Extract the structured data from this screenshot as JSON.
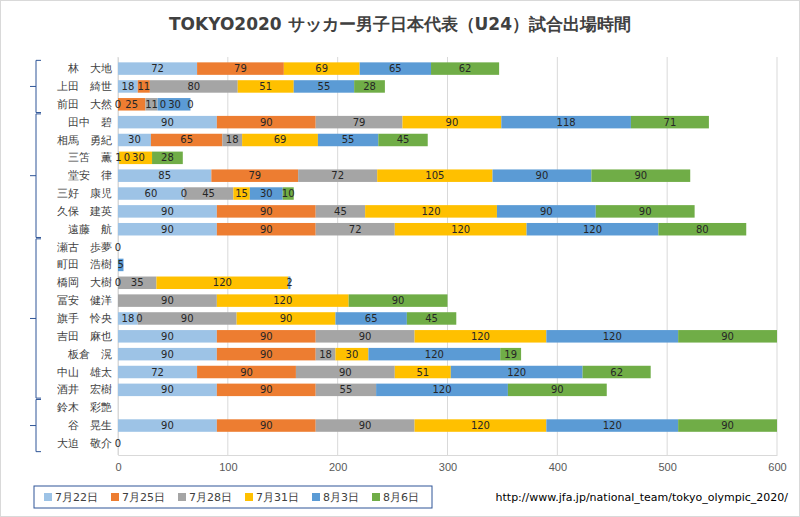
{
  "chart_data": {
    "type": "bar",
    "orientation": "horizontal",
    "stacked": true,
    "data_labels": true,
    "grid": true,
    "legend": "bottom",
    "title": "TOKYO2020 サッカー男子日本代表（U24）試合出場時間",
    "annotations": [
      "http://www.jfa.jp/national_team/tokyo_olympic_2020/"
    ],
    "categories": [
      "林　大地",
      "上田　綺世",
      "前田　大然",
      "田中　碧",
      "相馬　勇紀",
      "三笘　薫",
      "堂安　律",
      "三好　康児",
      "久保　建英",
      "遠藤　航",
      "瀬古　歩夢",
      "町田　浩樹",
      "橋岡　大樹",
      "冨安　健洋",
      "旗手　怜央",
      "吉田　麻也",
      "板倉　滉",
      "中山　雄太",
      "酒井　宏樹",
      "鈴木　彩艶",
      "谷　晃生",
      "大迫　敬介"
    ],
    "xlim": [
      0,
      600
    ],
    "xticks": [
      0,
      100,
      200,
      300,
      400,
      500,
      600
    ],
    "series": [
      {
        "name": "7月22日",
        "color": "#9dc3e6",
        "values": [
          72,
          18,
          0,
          90,
          30,
          1,
          85,
          60,
          90,
          90,
          0,
          null,
          0,
          null,
          18,
          90,
          90,
          72,
          90,
          null,
          90,
          0
        ]
      },
      {
        "name": "7月25日",
        "color": "#ed7d31",
        "values": [
          79,
          11,
          25,
          90,
          65,
          0,
          79,
          0,
          90,
          90,
          null,
          null,
          null,
          null,
          0,
          90,
          90,
          90,
          90,
          null,
          90,
          null
        ]
      },
      {
        "name": "7月28日",
        "color": "#a5a5a5",
        "values": [
          null,
          80,
          11,
          79,
          18,
          null,
          72,
          45,
          45,
          72,
          null,
          null,
          35,
          90,
          90,
          90,
          18,
          90,
          55,
          null,
          90,
          null
        ]
      },
      {
        "name": "7月31日",
        "color": "#ffc000",
        "values": [
          69,
          51,
          0,
          90,
          69,
          30,
          105,
          15,
          120,
          120,
          null,
          null,
          120,
          120,
          90,
          120,
          30,
          51,
          null,
          null,
          120,
          null
        ]
      },
      {
        "name": "8月3日",
        "color": "#5b9bd5",
        "values": [
          65,
          55,
          30,
          118,
          55,
          null,
          90,
          30,
          90,
          120,
          null,
          5,
          2,
          null,
          65,
          120,
          120,
          120,
          120,
          null,
          120,
          null
        ]
      },
      {
        "name": "8月6日",
        "color": "#70ad47",
        "values": [
          62,
          28,
          0,
          71,
          45,
          28,
          90,
          10,
          90,
          80,
          null,
          null,
          null,
          90,
          45,
          90,
          19,
          62,
          90,
          null,
          90,
          null
        ]
      }
    ]
  }
}
